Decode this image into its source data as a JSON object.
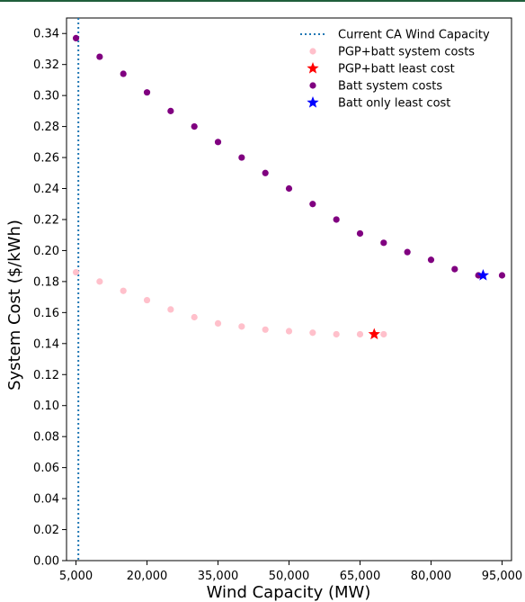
{
  "theme": {
    "top_rule_color": "#1f5e3b"
  },
  "chart_data": {
    "type": "scatter",
    "xlabel": "Wind Capacity (MW)",
    "ylabel": "System Cost ($/kWh)",
    "xlim": [
      3000,
      97000
    ],
    "ylim": [
      0.0,
      0.35
    ],
    "xticks": [
      5000,
      20000,
      35000,
      50000,
      65000,
      80000,
      95000
    ],
    "xtick_labels": [
      "5,000",
      "20,000",
      "35,000",
      "50,000",
      "65,000",
      "80,000",
      "95,000"
    ],
    "yticks": [
      0.0,
      0.02,
      0.04,
      0.06,
      0.08,
      0.1,
      0.12,
      0.14,
      0.16,
      0.18,
      0.2,
      0.22,
      0.24,
      0.26,
      0.28,
      0.3,
      0.32,
      0.34
    ],
    "ytick_labels": [
      "0.00",
      "0.02",
      "0.04",
      "0.06",
      "0.08",
      "0.10",
      "0.12",
      "0.14",
      "0.16",
      "0.18",
      "0.20",
      "0.22",
      "0.24",
      "0.26",
      "0.28",
      "0.30",
      "0.32",
      "0.34"
    ],
    "grid": false,
    "legend_position": "top-right",
    "vline": {
      "name": "Current CA Wind Capacity",
      "x": 5500,
      "color": "#1f77b4",
      "style": "dotted"
    },
    "series": [
      {
        "name": "PGP+batt system costs",
        "marker": "circle",
        "color": "#ffc0cb",
        "x": [
          5000,
          10000,
          15000,
          20000,
          25000,
          30000,
          35000,
          40000,
          45000,
          50000,
          55000,
          60000,
          65000,
          70000
        ],
        "y": [
          0.186,
          0.18,
          0.174,
          0.168,
          0.162,
          0.157,
          0.153,
          0.151,
          0.149,
          0.148,
          0.147,
          0.146,
          0.146,
          0.146
        ]
      },
      {
        "name": "PGP+batt least cost",
        "marker": "star",
        "color": "#ff0000",
        "x": [
          68000
        ],
        "y": [
          0.146
        ]
      },
      {
        "name": "Batt system costs",
        "marker": "circle",
        "color": "#800080",
        "x": [
          5000,
          10000,
          15000,
          20000,
          25000,
          30000,
          35000,
          40000,
          45000,
          50000,
          55000,
          60000,
          65000,
          70000,
          75000,
          80000,
          85000,
          90000,
          95000
        ],
        "y": [
          0.337,
          0.325,
          0.314,
          0.302,
          0.29,
          0.28,
          0.27,
          0.26,
          0.25,
          0.24,
          0.23,
          0.22,
          0.211,
          0.205,
          0.199,
          0.194,
          0.188,
          0.184,
          0.184
        ]
      },
      {
        "name": "Batt only least cost",
        "marker": "star",
        "color": "#0000ff",
        "x": [
          91000
        ],
        "y": [
          0.184
        ]
      }
    ]
  }
}
